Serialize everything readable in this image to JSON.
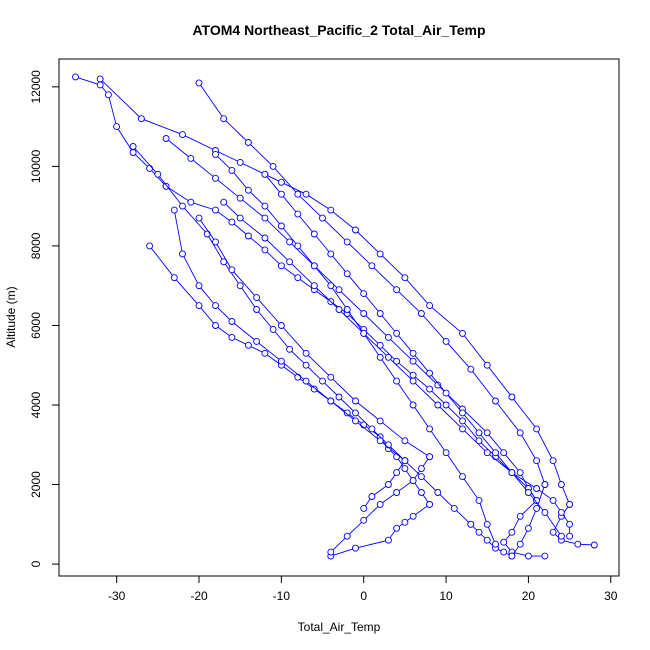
{
  "chart_data": {
    "type": "line",
    "title": "ATOM4 Northeast_Pacific_2 Total_Air_Temp",
    "xlabel": "Total_Air_Temp",
    "ylabel": "Altitude (m)",
    "xlim": [
      -37,
      31
    ],
    "ylim": [
      -300,
      12700
    ],
    "xticks": [
      -30,
      -20,
      -10,
      0,
      10,
      20,
      30
    ],
    "yticks": [
      0,
      2000,
      4000,
      6000,
      8000,
      10000,
      12000
    ],
    "xtick_labels": [
      "-30",
      "-20",
      "-10",
      "0",
      "10",
      "20",
      "30"
    ],
    "ytick_labels": [
      "0",
      "2000",
      "4000",
      "6000",
      "8000",
      "10000",
      "12000"
    ],
    "grid": false,
    "color": "#0000ff",
    "marker": "open-circle",
    "series": [
      {
        "x": [
          -35,
          -32,
          -31,
          -30,
          -28,
          -26,
          -24
        ],
        "y": [
          12250,
          12050,
          11800,
          11000,
          10350,
          9950,
          9500
        ]
      },
      {
        "x": [
          -24,
          -21,
          -18,
          -16,
          -14,
          -12,
          -10,
          -8,
          -6,
          -4,
          -2,
          0,
          2,
          4,
          6,
          8,
          10,
          12,
          14,
          16,
          18,
          20,
          21
        ],
        "y": [
          9500,
          9100,
          8900,
          8600,
          8250,
          7900,
          7500,
          7200,
          6900,
          6600,
          6300,
          5900,
          5500,
          5100,
          4750,
          4400,
          4000,
          3600,
          3100,
          2700,
          2300,
          1900,
          1600
        ]
      },
      {
        "x": [
          21,
          19,
          18,
          17,
          18,
          20,
          22
        ],
        "y": [
          1600,
          1200,
          800,
          550,
          300,
          200,
          200
        ]
      },
      {
        "x": [
          -26,
          -23,
          -20,
          -18,
          -16,
          -14,
          -12,
          -10,
          -8,
          -6,
          -4,
          -2,
          0,
          2,
          3,
          4,
          5,
          6,
          7,
          8
        ],
        "y": [
          8000,
          7200,
          6500,
          6000,
          5700,
          5500,
          5300,
          5000,
          4700,
          4400,
          4100,
          3800,
          3500,
          3200,
          2900,
          2700,
          2400,
          2100,
          1800,
          1500
        ]
      },
      {
        "x": [
          8,
          6,
          5,
          4,
          3,
          -1,
          -4
        ],
        "y": [
          1500,
          1200,
          1050,
          900,
          600,
          400,
          200
        ]
      },
      {
        "x": [
          -32,
          -27,
          -22,
          -18,
          -15,
          -12,
          -10,
          -7,
          -4,
          -1,
          2,
          5,
          8,
          12,
          15,
          18,
          21,
          23,
          24,
          25
        ],
        "y": [
          12200,
          11200,
          10800,
          10400,
          10100,
          9800,
          9600,
          9300,
          8900,
          8400,
          7800,
          7200,
          6500,
          5800,
          5000,
          4200,
          3400,
          2600,
          2000,
          1500
        ]
      },
      {
        "x": [
          25,
          24,
          23,
          24,
          26,
          28
        ],
        "y": [
          1500,
          1200,
          800,
          600,
          500,
          480
        ]
      },
      {
        "x": [
          -20,
          -17,
          -14,
          -11,
          -8,
          -5,
          -2,
          1,
          4,
          7,
          10,
          13,
          16,
          19,
          21,
          22
        ],
        "y": [
          12100,
          11200,
          10600,
          10000,
          9300,
          8700,
          8100,
          7500,
          6900,
          6300,
          5600,
          4900,
          4100,
          3300,
          2600,
          2000
        ]
      },
      {
        "x": [
          22,
          21,
          20,
          19,
          18
        ],
        "y": [
          2000,
          1400,
          900,
          500,
          200
        ]
      },
      {
        "x": [
          -28,
          -25,
          -22,
          -19,
          -17,
          -15,
          -13,
          -11,
          -9,
          -7,
          -5,
          -3,
          -1,
          1,
          3,
          5,
          7,
          9,
          11,
          13
        ],
        "y": [
          10500,
          9800,
          9000,
          8300,
          7600,
          7000,
          6400,
          5900,
          5400,
          5000,
          4600,
          4200,
          3800,
          3400,
          3000,
          2600,
          2200,
          1800,
          1400,
          1000
        ]
      },
      {
        "x": [
          13,
          14,
          15,
          16,
          17,
          18
        ],
        "y": [
          1000,
          800,
          600,
          400,
          300,
          200
        ]
      },
      {
        "x": [
          -23,
          -22,
          -20,
          -18,
          -16,
          -13,
          -10,
          -7,
          -4,
          -1,
          2,
          5
        ],
        "y": [
          8900,
          7800,
          7000,
          6500,
          6100,
          5600,
          5100,
          4600,
          4100,
          3600,
          3100,
          2600
        ]
      },
      {
        "x": [
          5,
          4,
          3,
          1,
          0
        ],
        "y": [
          2600,
          2300,
          2000,
          1700,
          1400
        ]
      },
      {
        "x": [
          -24,
          -21,
          -18,
          -15,
          -12,
          -9,
          -6,
          -3,
          0,
          3,
          6,
          9,
          12,
          15,
          17,
          19,
          20,
          21
        ],
        "y": [
          10700,
          10200,
          9700,
          9200,
          8700,
          8100,
          7500,
          6900,
          6300,
          5700,
          5100,
          4500,
          3900,
          3300,
          2800,
          2300,
          1900,
          1600
        ]
      },
      {
        "x": [
          -18,
          -16,
          -14,
          -12,
          -10,
          -8,
          -6,
          -4,
          -2,
          0,
          2,
          4,
          6,
          8,
          10,
          12,
          14,
          15,
          16
        ],
        "y": [
          10300,
          9900,
          9400,
          9000,
          8500,
          8000,
          7500,
          7000,
          6400,
          5800,
          5200,
          4600,
          4000,
          3400,
          2800,
          2200,
          1600,
          1000,
          500
        ]
      },
      {
        "x": [
          -17,
          -15,
          -12,
          -9,
          -6,
          -3,
          0,
          3,
          6,
          9,
          12,
          15,
          18,
          21,
          23,
          24,
          25,
          25
        ],
        "y": [
          9100,
          8700,
          8200,
          7600,
          7000,
          6400,
          5800,
          5200,
          4600,
          4000,
          3400,
          2800,
          2300,
          1900,
          1600,
          1300,
          1000,
          700
        ]
      },
      {
        "x": [
          -12,
          -10,
          -8,
          -6,
          -4,
          -2,
          0,
          2,
          4,
          6,
          8,
          10,
          12,
          14,
          16,
          18,
          20,
          22,
          24
        ],
        "y": [
          9800,
          9300,
          8800,
          8300,
          7800,
          7300,
          6800,
          6300,
          5800,
          5300,
          4800,
          4300,
          3800,
          3300,
          2800,
          2300,
          1800,
          1300,
          700
        ]
      },
      {
        "x": [
          -20,
          -18,
          -16,
          -13,
          -10,
          -7,
          -4,
          -1,
          2,
          5,
          8
        ],
        "y": [
          8700,
          8100,
          7400,
          6700,
          6000,
          5300,
          4700,
          4100,
          3600,
          3100,
          2700
        ]
      },
      {
        "x": [
          8,
          7,
          6,
          4,
          2,
          0,
          -2,
          -4
        ],
        "y": [
          2700,
          2400,
          2100,
          1800,
          1500,
          1100,
          700,
          300
        ]
      }
    ]
  }
}
